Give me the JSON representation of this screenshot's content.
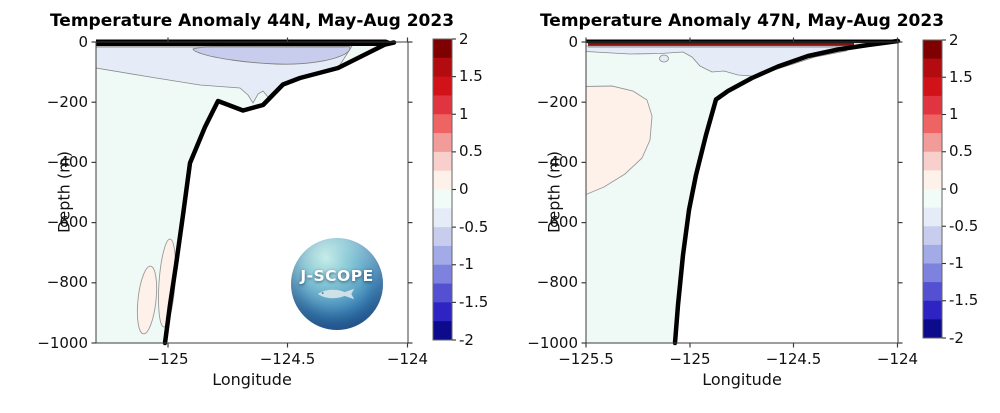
{
  "plots": [
    {
      "title": "Temperature Anomaly 44N, May-Aug 2023",
      "xlabel": "Longitude",
      "ylabel": "Depth (m)",
      "x_tick_labels": [
        "−125",
        "−124.5",
        "−124"
      ],
      "y_tick_labels": [
        "0",
        "−200",
        "−400",
        "−600",
        "−800",
        "−1000"
      ]
    },
    {
      "title": "Temperature Anomaly 47N, May-Aug 2023",
      "xlabel": "Longitude",
      "ylabel": "Depth (m)",
      "x_tick_labels": [
        "−125.5",
        "−125",
        "−124.5",
        "−124"
      ],
      "y_tick_labels": [
        "0",
        "−200",
        "−400",
        "−600",
        "−800",
        "−1000"
      ]
    }
  ],
  "colorbar": {
    "tick_labels": [
      "2",
      "1.5",
      "1",
      "0.5",
      "0",
      "-0.5",
      "-1",
      "-1.5",
      "-2"
    ],
    "colors_top_to_bottom": [
      "#7f0000",
      "#b20b10",
      "#d11219",
      "#e03540",
      "#ee6463",
      "#f29c9a",
      "#f8cfcb",
      "#fdf1ea",
      "#f1fbf8",
      "#e6ecf7",
      "#c8cdee",
      "#a2aae7",
      "#7d82de",
      "#5351d1",
      "#2e24c3",
      "#0b0b8c"
    ],
    "value_range": [
      -2,
      2
    ]
  },
  "logo": {
    "text": "J-SCOPE"
  },
  "chart_data": [
    {
      "type": "contour",
      "title": "Temperature Anomaly 44N, May-Aug 2023",
      "xlabel": "Longitude",
      "ylabel": "Depth (m)",
      "xlim": [
        -125.3,
        -124
      ],
      "ylim": [
        -1000,
        0
      ],
      "colorbar_range": [
        -2,
        2
      ],
      "colorbar_step": 0.25,
      "legend_position": "right",
      "regions": [
        {
          "value_range_degC": [
            1,
            2
          ],
          "description": "thin warm anomaly band at the sea surface (0 to about -10 m) across all longitudes"
        },
        {
          "value_range_degC": [
            -0.75,
            -0.5
          ],
          "description": "cool subsurface lens between about -20 and -80 m from lon -124.9 to -124.25"
        },
        {
          "value_range_degC": [
            -0.5,
            -0.25
          ],
          "description": "cool upper layer from the surface down to -100 m at the west edge and -220 m near the shelf"
        },
        {
          "value_range_degC": [
            -0.25,
            0
          ],
          "description": "near-zero anomaly over most of the section below about -100 m"
        },
        {
          "value_range_degC": [
            0,
            0.25
          ],
          "description": "two narrow weak-warm ovals near lon -125.1 and -125.05 between about -650 and -950 m"
        }
      ],
      "seafloor_profile_lon_depth_m": [
        [
          -124.07,
          0
        ],
        [
          -124.3,
          -90
        ],
        [
          -124.45,
          -120
        ],
        [
          -124.52,
          -140
        ],
        [
          -124.6,
          -210
        ],
        [
          -124.69,
          -226
        ],
        [
          -124.79,
          -196
        ],
        [
          -124.91,
          -400
        ],
        [
          -125.0,
          -1000
        ]
      ]
    },
    {
      "type": "contour",
      "title": "Temperature Anomaly 47N, May-Aug 2023",
      "xlabel": "Longitude",
      "ylabel": "Depth (m)",
      "xlim": [
        -125.5,
        -124
      ],
      "ylim": [
        -1000,
        0
      ],
      "colorbar_range": [
        -2,
        2
      ],
      "colorbar_step": 0.25,
      "legend_position": "right",
      "regions": [
        {
          "value_range_degC": [
            1,
            2
          ],
          "description": "thin warm anomaly band at the sea surface (0 to about -10 m)"
        },
        {
          "value_range_degC": [
            -0.5,
            -0.25
          ],
          "description": "cool patch just below the surface (about -20 to -110 m) between lon -125.0 and -124.3"
        },
        {
          "value_range_degC": [
            0,
            0.25
          ],
          "description": "weak warm blob at the western edge between about -160 and -520 m, lon -125.5 to -125.2"
        },
        {
          "value_range_degC": [
            -0.25,
            0
          ],
          "description": "near-zero anomaly over the rest of the ocean section"
        }
      ],
      "seafloor_profile_lon_depth_m": [
        [
          -124.0,
          0
        ],
        [
          -124.45,
          -80
        ],
        [
          -124.78,
          -140
        ],
        [
          -124.88,
          -190
        ],
        [
          -125.0,
          -440
        ],
        [
          -125.07,
          -1000
        ]
      ]
    }
  ]
}
